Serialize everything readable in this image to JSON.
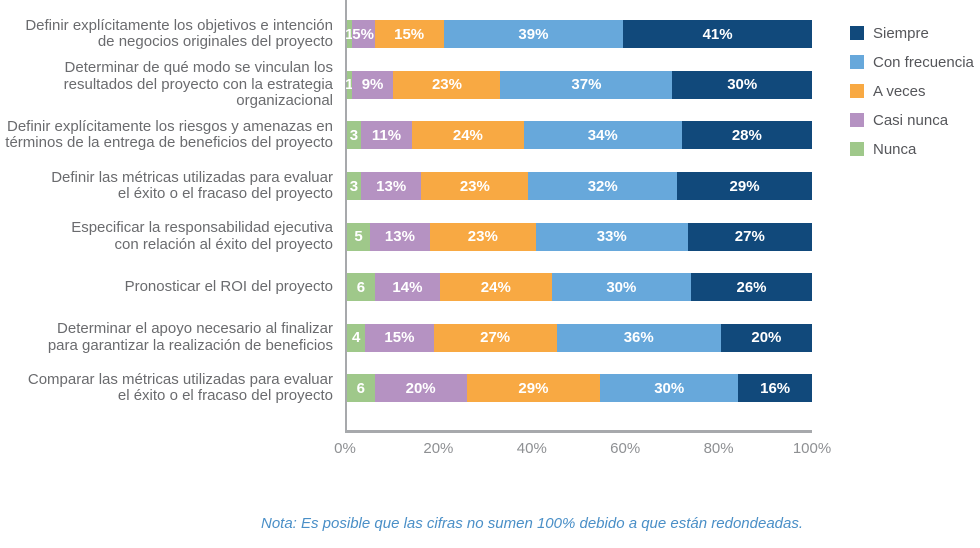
{
  "note": "Nota: Es posible que las cifras no sumen 100% debido a que están redondeadas.",
  "chart_data": {
    "type": "bar",
    "subtype": "horizontal-stacked",
    "title": "",
    "xlabel": "",
    "ylabel": "",
    "xlim": [
      0,
      100
    ],
    "grid": false,
    "legend_position": "top-right",
    "x_ticks": [
      "0%",
      "20%",
      "40%",
      "60%",
      "80%",
      "100%"
    ],
    "categories": [
      [
        "Definir explícitamente los objetivos e intención",
        "de negocios originales del proyecto"
      ],
      [
        "Determinar de qué modo se vinculan los",
        "resultados del proyecto con la estrategia",
        "organizacional"
      ],
      [
        "Definir explícitamente los riesgos y amenazas en",
        "términos de la entrega de beneficios del proyecto"
      ],
      [
        "Definir las métricas utilizadas para evaluar",
        "el éxito o el fracaso del proyecto"
      ],
      [
        "Especificar la responsabilidad ejecutiva",
        "con relación al éxito del proyecto"
      ],
      [
        "Pronosticar el ROI del proyecto"
      ],
      [
        "Determinar el apoyo necesario al finalizar",
        "para garantizar la realización de beneficios"
      ],
      [
        "Comparar las métricas utilizadas para evaluar",
        "el éxito o el fracaso del proyecto"
      ]
    ],
    "series": [
      {
        "key": "nunca",
        "name": "Nunca",
        "color": "#9FC88A",
        "values": [
          1,
          1,
          3,
          3,
          5,
          6,
          4,
          6
        ],
        "labels": [
          "1",
          "1",
          "3",
          "3",
          "5",
          "6",
          "4",
          "6"
        ]
      },
      {
        "key": "casi-nunca",
        "name": "Casi nunca",
        "color": "#B592C2",
        "values": [
          5,
          9,
          11,
          13,
          13,
          14,
          15,
          20
        ],
        "labels": [
          "5%",
          "9%",
          "11%",
          "13%",
          "13%",
          "14%",
          "15%",
          "20%"
        ]
      },
      {
        "key": "a-veces",
        "name": "A veces",
        "color": "#F8A943",
        "values": [
          15,
          23,
          24,
          23,
          23,
          24,
          27,
          29
        ],
        "labels": [
          "15%",
          "23%",
          "24%",
          "23%",
          "23%",
          "24%",
          "27%",
          "29%"
        ]
      },
      {
        "key": "con-frecuencia",
        "name": "Con frecuencia",
        "color": "#67A8DB",
        "values": [
          39,
          37,
          34,
          32,
          33,
          30,
          36,
          30
        ],
        "labels": [
          "39%",
          "37%",
          "34%",
          "32%",
          "33%",
          "30%",
          "36%",
          "30%"
        ]
      },
      {
        "key": "siempre",
        "name": "Siempre",
        "color": "#11497B",
        "values": [
          41,
          30,
          28,
          29,
          27,
          26,
          20,
          16
        ],
        "labels": [
          "41%",
          "30%",
          "28%",
          "29%",
          "27%",
          "26%",
          "20%",
          "16%"
        ]
      }
    ],
    "legend": [
      {
        "key": "siempre",
        "label": "Siempre",
        "color": "#11497B"
      },
      {
        "key": "con-frecuencia",
        "label": "Con frecuencia",
        "color": "#67A8DB"
      },
      {
        "key": "a-veces",
        "label": "A veces",
        "color": "#F8A943"
      },
      {
        "key": "casi-nunca",
        "label": "Casi nunca",
        "color": "#B592C2"
      },
      {
        "key": "nunca",
        "label": "Nunca",
        "color": "#9FC88A"
      }
    ],
    "colors": {
      "axis": "#a7a9ac",
      "category_text": "#6a6b6e",
      "tick_text": "#8e9093",
      "legend_text": "#55565a",
      "note_text": "#4a8fc7",
      "bar_label_text": "#ffffff"
    }
  }
}
